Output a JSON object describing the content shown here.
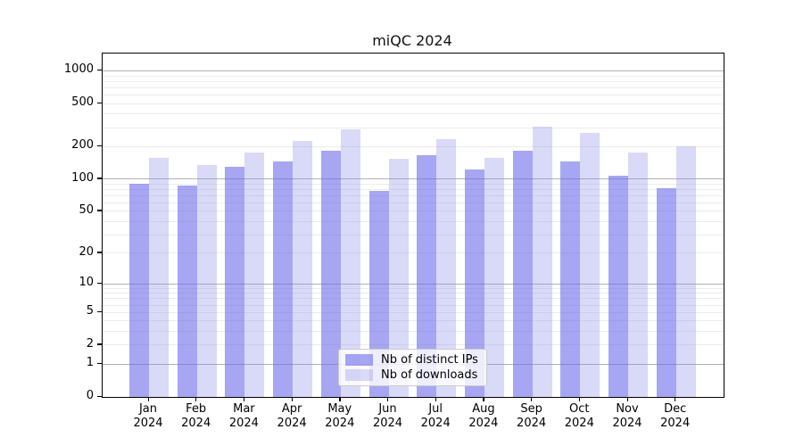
{
  "chart_data": {
    "type": "bar",
    "title": "miQC 2024",
    "categories": [
      "Jan",
      "Feb",
      "Mar",
      "Apr",
      "May",
      "Jun",
      "Jul",
      "Aug",
      "Sep",
      "Oct",
      "Nov",
      "Dec"
    ],
    "category_year": "2024",
    "series": [
      {
        "name": "Nb of distinct IPs",
        "fill": "rgba(107,107,233,0.6)",
        "color_over_white": "#a6a6f2",
        "values": [
          90,
          87,
          130,
          146,
          183,
          77,
          167,
          122,
          185,
          146,
          107,
          82
        ]
      },
      {
        "name": "Nb of downloads",
        "fill": "rgba(128,128,232,0.3)",
        "color_over_white": "#d9d9f7",
        "values": [
          158,
          135,
          177,
          228,
          289,
          154,
          236,
          157,
          308,
          267,
          175,
          202
        ]
      }
    ],
    "yscale": "log1p",
    "ylim": [
      0,
      1445
    ],
    "y_tick_values": [
      0,
      1,
      2,
      5,
      10,
      20,
      50,
      100,
      200,
      500,
      1000
    ],
    "y_tick_labels": [
      "0",
      "1",
      "2",
      "5",
      "10",
      "20",
      "50",
      "100",
      "200",
      "500",
      "1000"
    ],
    "grid": true,
    "grid_major_values": [
      1,
      10,
      100,
      1000
    ],
    "grid_minor_values": [
      2,
      3,
      4,
      5,
      6,
      7,
      8,
      9,
      20,
      30,
      40,
      50,
      60,
      70,
      80,
      90,
      200,
      300,
      400,
      500,
      600,
      700,
      800,
      900
    ],
    "legend_position": "lower center",
    "colors": {
      "grid_major": "#b2b2b2",
      "grid_minor": "#ececec",
      "axis": "#000000",
      "background": "#ffffff",
      "text": "#000000"
    }
  }
}
